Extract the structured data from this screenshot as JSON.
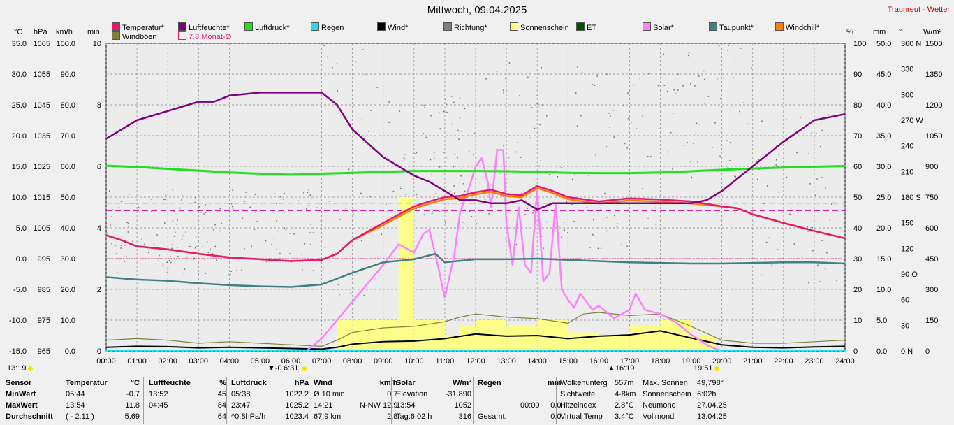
{
  "title": "Mittwoch, 09.04.2025",
  "station": "Traunreut - Wetter",
  "units_left": [
    "°C",
    "hPa",
    "km/h",
    "min"
  ],
  "units_right": [
    "%",
    "mm",
    "°",
    "W/m²"
  ],
  "legend": [
    {
      "label": "Temperatur*",
      "color": "#e8186e"
    },
    {
      "label": "Luftfeuchte*",
      "color": "#800080"
    },
    {
      "label": "Luftdruck*",
      "color": "#20e020"
    },
    {
      "label": "Regen",
      "color": "#20e0f0"
    },
    {
      "label": "Wind*",
      "color": "#000000"
    },
    {
      "label": "Richtung*",
      "color": "#808080"
    },
    {
      "label": "Sonnenschein",
      "color": "#ffff80"
    },
    {
      "label": "ET",
      "color": "#005000"
    },
    {
      "label": "Solar*",
      "color": "#ff80ff"
    },
    {
      "label": "Taupunkt*",
      "color": "#408080"
    },
    {
      "label": "Windchill*",
      "color": "#ff8000"
    },
    {
      "label": "Windböen",
      "color": "#808040"
    },
    {
      "label": "7.8 Monat-Ø",
      "color": "#e8186e"
    }
  ],
  "markers": {
    "sunrise": "6:31",
    "sunset": "19:51",
    "start": "13:19",
    "moon_start": "-0",
    "moon_mid": "16:19"
  },
  "chart_data": {
    "type": "line",
    "x_ticks": [
      "00:00",
      "01:00",
      "02:00",
      "03:00",
      "04:00",
      "05:00",
      "06:00",
      "07:00",
      "08:00",
      "09:00",
      "10:00",
      "11:00",
      "12:00",
      "13:00",
      "14:00",
      "15:00",
      "16:00",
      "17:00",
      "18:00",
      "19:00",
      "20:00",
      "21:00",
      "22:00",
      "23:00",
      "24:00"
    ],
    "y_axes": {
      "temp_c": {
        "ticks": [
          "35.0",
          "30.0",
          "25.0",
          "20.0",
          "15.0",
          "10.0",
          "5.0",
          "0.0",
          "-5.0",
          "-10.0",
          "-15.0"
        ],
        "range": [
          -15,
          35
        ]
      },
      "pressure_hpa": {
        "ticks": [
          "1065",
          "1055",
          "1045",
          "1035",
          "1025",
          "1015",
          "1005",
          "995",
          "985",
          "975",
          "965"
        ],
        "range": [
          965,
          1065
        ]
      },
      "wind_kmh": {
        "ticks": [
          "100.0",
          "90.0",
          "80.0",
          "70.0",
          "60.0",
          "50.0",
          "40.0",
          "30.0",
          "20.0",
          "10.0",
          "0.0"
        ],
        "range": [
          0,
          100
        ]
      },
      "sun_min": {
        "ticks": [
          "10",
          "8",
          "6",
          "4",
          "2",
          "0"
        ],
        "range": [
          0,
          10
        ]
      },
      "humidity_pct": {
        "ticks": [
          "100",
          "90",
          "80",
          "70",
          "60",
          "50",
          "40",
          "30",
          "20",
          "10",
          "0"
        ],
        "range": [
          0,
          100
        ]
      },
      "rain_mm": {
        "ticks": [
          "50.0",
          "45.0",
          "40.0",
          "35.0",
          "30.0",
          "25.0",
          "20.0",
          "15.0",
          "10.0",
          "5.0",
          "0.0"
        ],
        "range": [
          0,
          50
        ]
      },
      "dir_deg": {
        "ticks": [
          "360 N",
          "330",
          "300",
          "270 W",
          "240",
          "210",
          "180 S",
          "150",
          "120",
          "90 O",
          "60",
          "30",
          "0 N"
        ],
        "range": [
          0,
          360
        ]
      },
      "solar_wm2": {
        "ticks": [
          "1500",
          "1350",
          "1200",
          "1050",
          "900",
          "750",
          "600",
          "450",
          "300",
          "150",
          "0"
        ],
        "range": [
          0,
          1500
        ]
      }
    },
    "series": [
      {
        "name": "Temperatur*",
        "axis": "temp_c",
        "x": [
          0,
          0.5,
          1,
          2,
          3,
          4,
          5,
          6,
          7,
          7.5,
          8,
          9,
          10,
          10.5,
          11,
          11.5,
          12,
          12.5,
          13,
          13.5,
          14,
          14.5,
          15,
          16,
          17,
          18,
          19,
          20,
          20.5,
          21,
          22,
          23,
          24
        ],
        "y": [
          3.8,
          3,
          2,
          1.5,
          0.8,
          0.2,
          -0.1,
          -0.4,
          -0.2,
          0.8,
          3,
          5.8,
          8.5,
          9.3,
          10,
          10.2,
          10.8,
          11.2,
          10.5,
          10.3,
          11.8,
          11,
          10,
          9.3,
          9.8,
          9.6,
          9.3,
          8.5,
          8.2,
          7.2,
          5.8,
          4.5,
          3.3
        ]
      },
      {
        "name": "Luftfeuchte*",
        "axis": "humidity_pct",
        "x": [
          0,
          0.5,
          1,
          2,
          3,
          3.5,
          4,
          5,
          6,
          7,
          7.5,
          8,
          9,
          10,
          10.5,
          11,
          11.5,
          12,
          12.5,
          13,
          13.5,
          14,
          14.5,
          15,
          16,
          17,
          18,
          19,
          19.5,
          20,
          21,
          22,
          23,
          24
        ],
        "y": [
          69,
          72,
          75,
          78,
          81,
          81,
          83,
          84,
          84,
          84,
          80,
          72,
          63,
          57,
          55,
          52,
          49,
          49,
          48,
          48,
          49,
          46,
          48,
          48,
          48,
          48,
          48,
          48,
          49,
          52,
          60,
          68,
          75,
          77
        ]
      },
      {
        "name": "Luftdruck*",
        "axis": "pressure_hpa",
        "x": [
          0,
          1,
          2,
          3,
          4,
          5,
          6,
          7,
          8,
          9,
          10,
          11,
          12,
          13,
          14,
          15,
          16,
          17,
          18,
          19,
          20,
          21,
          22,
          23,
          24
        ],
        "y": [
          1025.2,
          1024.8,
          1024.2,
          1023.6,
          1023.0,
          1022.6,
          1022.3,
          1022.6,
          1022.9,
          1023.2,
          1023.5,
          1023.5,
          1023.5,
          1023.4,
          1023.2,
          1022.9,
          1022.8,
          1022.8,
          1023.0,
          1023.4,
          1023.9,
          1024.3,
          1024.6,
          1024.9,
          1025.1
        ]
      },
      {
        "name": "Taupunkt*",
        "axis": "temp_c",
        "x": [
          0,
          1,
          2,
          3,
          4,
          5,
          6,
          7,
          8,
          9,
          10,
          10.7,
          11,
          12,
          13,
          14,
          15,
          16,
          17,
          18,
          19,
          20,
          21,
          22,
          23,
          24
        ],
        "y": [
          -3.0,
          -3.4,
          -3.6,
          -4.0,
          -4.3,
          -4.5,
          -4.6,
          -4.2,
          -2.3,
          -0.6,
          -0.1,
          0.8,
          -0.6,
          -0.1,
          -0.1,
          0.0,
          -0.2,
          -0.4,
          -0.6,
          -0.7,
          -0.8,
          -0.8,
          -0.7,
          -0.6,
          -0.6,
          -0.8
        ]
      },
      {
        "name": "Solar*",
        "axis": "solar_wm2",
        "x": [
          6.5,
          7,
          7.5,
          8,
          8.5,
          9,
          9.5,
          10,
          10.3,
          10.5,
          10.8,
          11,
          11.3,
          11.5,
          11.8,
          12,
          12.2,
          12.4,
          12.5,
          12.7,
          12.9,
          13,
          13.2,
          13.4,
          13.6,
          13.8,
          14,
          14.2,
          14.4,
          14.6,
          14.8,
          15,
          15.2,
          15.4,
          15.6,
          15.8,
          16,
          16.5,
          17,
          17.2,
          17.5,
          18,
          18.5,
          19,
          19.5,
          19.8,
          20
        ],
        "y": [
          0,
          60,
          150,
          240,
          330,
          420,
          520,
          480,
          570,
          590,
          400,
          260,
          460,
          680,
          800,
          900,
          940,
          820,
          700,
          980,
          980,
          620,
          420,
          700,
          420,
          380,
          790,
          340,
          380,
          720,
          300,
          250,
          210,
          280,
          240,
          200,
          220,
          160,
          200,
          280,
          200,
          180,
          140,
          80,
          30,
          10,
          0
        ]
      },
      {
        "name": "Wind*",
        "axis": "wind_kmh",
        "x": [
          0,
          1,
          2,
          3,
          4,
          5,
          6,
          7,
          7.5,
          8,
          9,
          10,
          11,
          12,
          13,
          14,
          15,
          16,
          17,
          18,
          19,
          20,
          21,
          22,
          23,
          24
        ],
        "y": [
          1.2,
          1.5,
          1.4,
          1.0,
          1.2,
          1.0,
          0.8,
          0.6,
          1.2,
          2.2,
          3.0,
          3.2,
          4.0,
          5.5,
          4.8,
          5.0,
          4.0,
          4.8,
          5.2,
          6.5,
          4.2,
          2.0,
          1.2,
          1.0,
          1.3,
          1.5
        ]
      },
      {
        "name": "Windböen",
        "axis": "wind_kmh",
        "x": [
          0,
          1,
          2,
          3,
          4,
          5,
          6,
          7,
          7.5,
          8,
          9,
          10,
          11,
          11.5,
          12,
          13,
          14,
          15,
          15.5,
          16,
          17,
          18,
          19,
          20,
          21,
          22,
          23,
          24
        ],
        "y": [
          3.5,
          4,
          3.5,
          2.5,
          3,
          2.5,
          2,
          1.5,
          3.5,
          6,
          7.5,
          8,
          9.5,
          11,
          12,
          11,
          10.5,
          9,
          12,
          12.5,
          11.5,
          12,
          8,
          3.5,
          2.5,
          2.5,
          3,
          3.5
        ]
      },
      {
        "name": "Sonnenschein",
        "axis": "sun_min",
        "x": [
          7.5,
          8,
          9,
          9.4,
          9.5,
          10,
          10.5,
          11,
          11.5,
          12,
          12.5,
          13,
          14,
          15,
          16,
          17,
          18,
          19,
          19.8
        ],
        "y": [
          1,
          1,
          1,
          1,
          5,
          1,
          1,
          0.5,
          0.8,
          1,
          1,
          0.8,
          1,
          0.6,
          0.5,
          0.8,
          1,
          0.5,
          2
        ]
      }
    ],
    "reference_lines": [
      {
        "axis": "temp_c",
        "value": 0
      },
      {
        "axis": "temp_c",
        "value": 7.8
      },
      {
        "axis": "temp_c",
        "value": 9.0
      }
    ]
  },
  "stats": {
    "headers": [
      "Sensor",
      "Temperatur",
      "°C",
      "Luftfeuchte",
      "%",
      "Luftdruck",
      "hPa",
      "Wind",
      "km/h",
      "Solar",
      "W/m²",
      "Regen",
      "mm"
    ],
    "row_labels": [
      "MinWert",
      "MaxWert",
      "Durchschnitt"
    ],
    "temperatur": [
      [
        "05:44",
        "-0.7"
      ],
      [
        "13:54",
        "11.8"
      ],
      [
        "( - 2.11 )",
        "5.69"
      ]
    ],
    "luftfeuchte": [
      [
        "13:52",
        "45"
      ],
      [
        "04:45",
        "84"
      ],
      [
        "",
        "64"
      ]
    ],
    "luftdruck": [
      [
        "05:38",
        "1022.2"
      ],
      [
        "23:47",
        "1025.2"
      ],
      [
        "^0.8hPa/h",
        "1023.4"
      ]
    ],
    "wind": [
      [
        "Ø 10 min.",
        "0.7"
      ],
      [
        "14:21",
        "N-NW 12.9"
      ],
      [
        "67.9 km",
        "2.8"
      ]
    ],
    "solar": [
      [
        "Elevation",
        "-31.890"
      ],
      [
        "13:54",
        "1052"
      ],
      [
        "Tag:6:02 h",
        "316"
      ]
    ],
    "regen": [
      [
        "",
        "",
        ""
      ],
      [
        "",
        "00:00",
        "0.0"
      ],
      [
        "Gesamt:",
        "",
        "0.0"
      ]
    ],
    "extra1": [
      [
        "Wolkenunterg",
        "557m"
      ],
      [
        "Sichtweite",
        "4-8km"
      ],
      [
        "Hitzeindex",
        "2.8°C"
      ],
      [
        "Virtual Temp",
        "3.4°C"
      ]
    ],
    "extra2": [
      [
        "Max. Sonnen",
        "49,798°"
      ],
      [
        "Sonnenschein",
        "6:02h"
      ],
      [
        "Neumond",
        "27.04.25"
      ],
      [
        "Vollmond",
        "13.04.25"
      ]
    ]
  }
}
